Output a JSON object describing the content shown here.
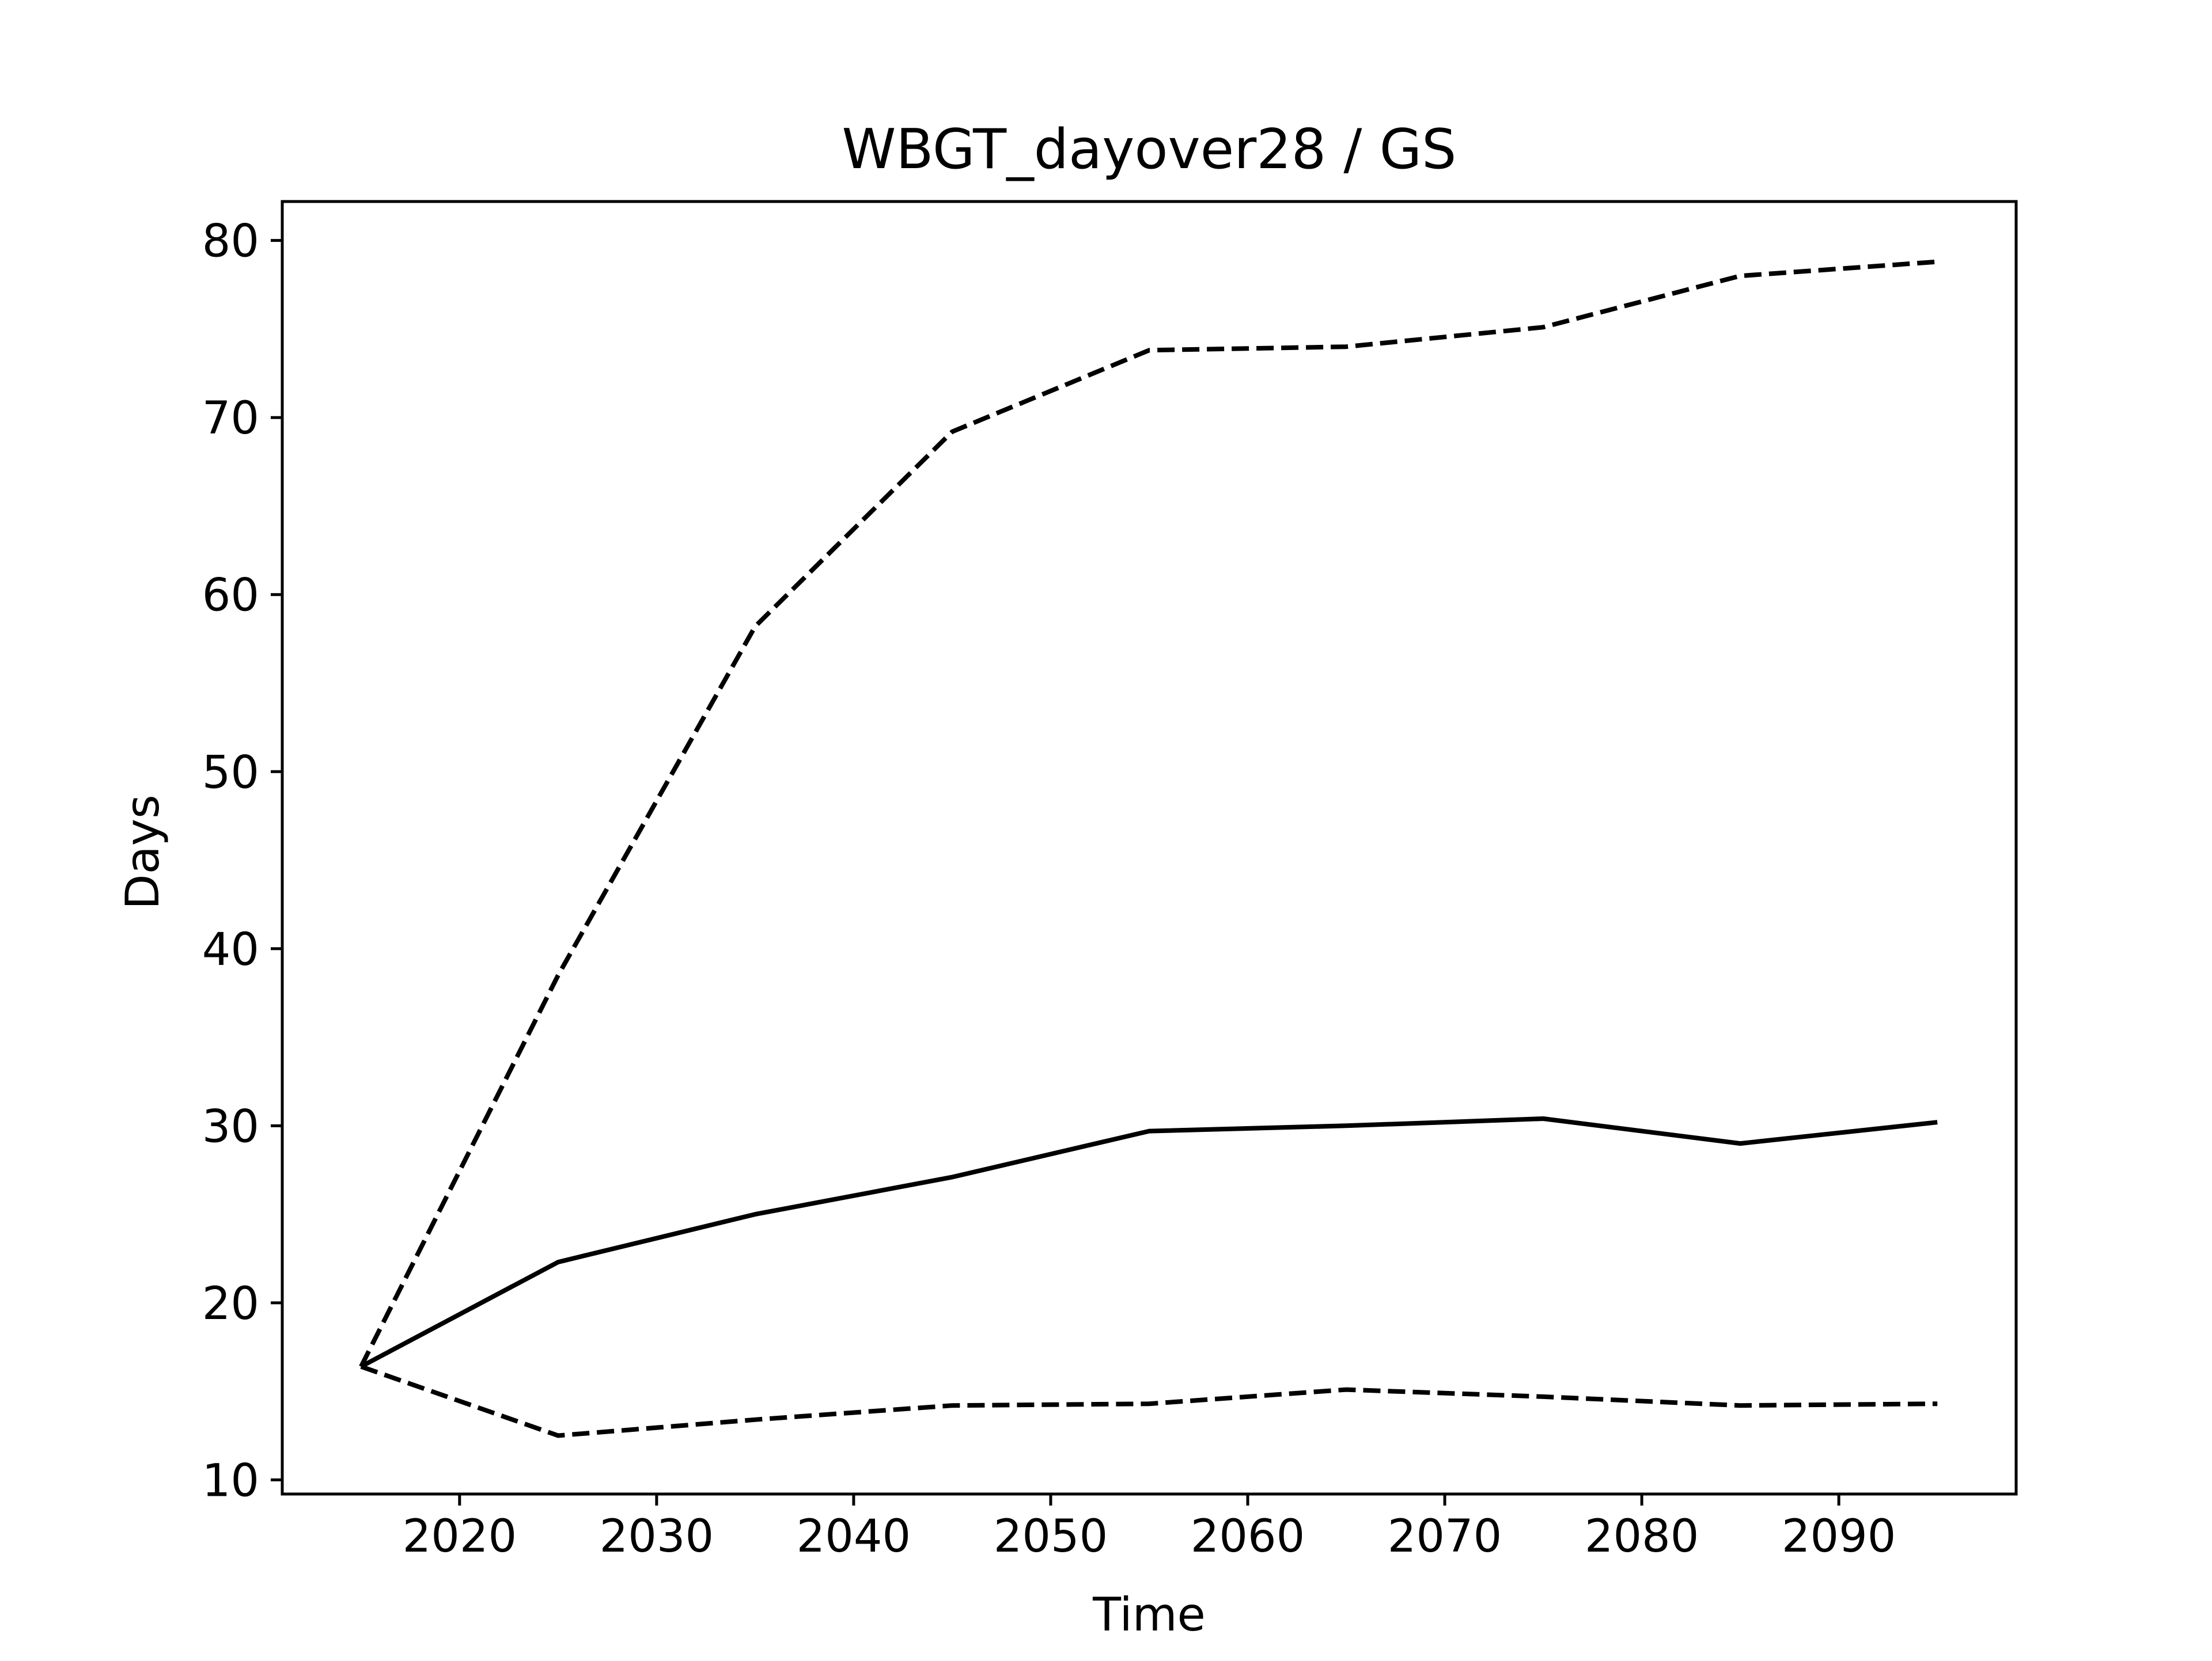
{
  "chart_data": {
    "type": "line",
    "title": "WBGT_dayover28 / GS",
    "xlabel": "Time",
    "ylabel": "Days",
    "xlim": [
      2011,
      2099
    ],
    "ylim": [
      9.2,
      82.2
    ],
    "xticks": [
      2020,
      2030,
      2040,
      2050,
      2060,
      2070,
      2080,
      2090
    ],
    "yticks": [
      10,
      20,
      30,
      40,
      50,
      60,
      70,
      80
    ],
    "xtick_labels": [
      "2020",
      "2030",
      "2040",
      "2050",
      "2060",
      "2070",
      "2080",
      "2090"
    ],
    "ytick_labels": [
      "10",
      "20",
      "30",
      "40",
      "50",
      "60",
      "70",
      "80"
    ],
    "grid": false,
    "legend": "none",
    "line_color": "#000000",
    "x": [
      2015,
      2025,
      2035,
      2045,
      2055,
      2065,
      2075,
      2085,
      2095
    ],
    "series": [
      {
        "style": "dashed",
        "values": [
          16.4,
          38.5,
          58.2,
          69.2,
          73.8,
          74.0,
          75.1,
          78.0,
          78.8
        ]
      },
      {
        "style": "solid",
        "values": [
          16.4,
          22.3,
          25.0,
          27.1,
          29.7,
          30.0,
          30.4,
          29.0,
          30.2
        ]
      },
      {
        "style": "dashed",
        "values": [
          16.4,
          12.5,
          13.4,
          14.2,
          14.3,
          15.1,
          14.7,
          14.2,
          14.3
        ]
      }
    ]
  }
}
